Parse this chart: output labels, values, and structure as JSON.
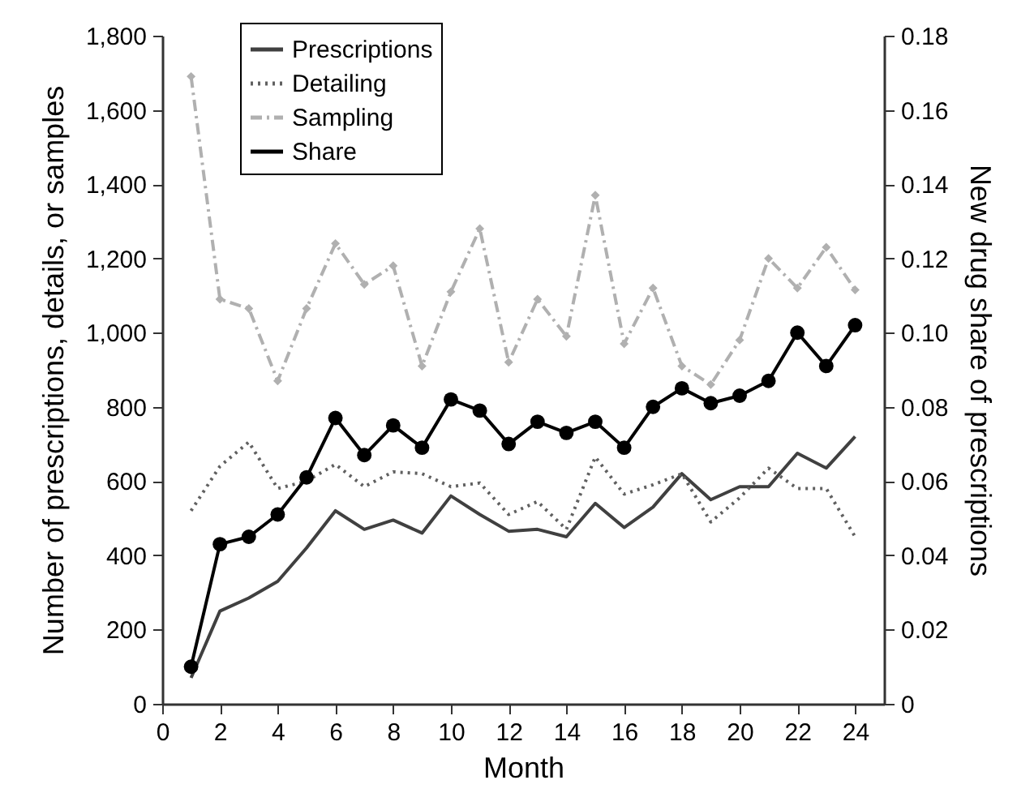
{
  "chart_data": {
    "type": "line",
    "xlabel": "Month",
    "ylabel": "Number of prescriptions, details, or samples",
    "y2label": "New drug share of prescriptions",
    "x": [
      1,
      2,
      3,
      4,
      5,
      6,
      7,
      8,
      9,
      10,
      11,
      12,
      13,
      14,
      15,
      16,
      17,
      18,
      19,
      20,
      21,
      22,
      23,
      24
    ],
    "xlim": [
      0,
      25
    ],
    "xticks": [
      0,
      2,
      4,
      6,
      8,
      10,
      12,
      14,
      16,
      18,
      20,
      22,
      24
    ],
    "ylim": [
      0,
      1800
    ],
    "yticks": [
      0,
      200,
      400,
      600,
      800,
      {
        "value": 1000,
        "label": "1,000"
      },
      {
        "value": 1200,
        "label": "1,200"
      },
      {
        "value": 1400,
        "label": "1,400"
      },
      {
        "value": 1600,
        "label": "1,600"
      },
      {
        "value": 1800,
        "label": "1,800"
      }
    ],
    "y2lim": [
      0,
      0.18
    ],
    "y2ticks": [
      0,
      0.02,
      0.04,
      0.06,
      0.08,
      {
        "value": 0.1,
        "label": "0.10"
      },
      0.12,
      0.14,
      0.16,
      0.18
    ],
    "grid": false,
    "legend": "top left",
    "series": [
      {
        "name": "Prescriptions",
        "color": "#404040",
        "line_style": "solid",
        "marker": "none",
        "values": [
          70,
          250,
          285,
          330,
          420,
          520,
          470,
          495,
          460,
          560,
          510,
          465,
          470,
          450,
          540,
          475,
          530,
          620,
          550,
          585,
          585,
          675,
          635,
          720
        ]
      },
      {
        "name": "Detailing",
        "color": "#606060",
        "line_style": "dotted",
        "marker": "none",
        "values": [
          520,
          640,
          705,
          580,
          600,
          645,
          585,
          625,
          620,
          585,
          595,
          510,
          545,
          470,
          665,
          565,
          590,
          620,
          490,
          555,
          635,
          580,
          580,
          450
        ]
      },
      {
        "name": "Sampling",
        "color": "#b0b0b0",
        "line_style": "dashed",
        "marker": "diamond",
        "values": [
          1690,
          1090,
          1065,
          870,
          1065,
          1240,
          1130,
          1180,
          910,
          1110,
          1280,
          920,
          1090,
          990,
          1370,
          970,
          1120,
          910,
          860,
          980,
          1200,
          1120,
          1230,
          1115
        ]
      },
      {
        "name": "Share",
        "color": "#000000",
        "line_style": "solid",
        "marker": "circle",
        "axis": "y2",
        "values": [
          0.01,
          0.043,
          0.045,
          0.051,
          0.061,
          0.077,
          0.067,
          0.075,
          0.069,
          0.082,
          0.079,
          0.07,
          0.076,
          0.073,
          0.076,
          0.069,
          0.08,
          0.085,
          0.081,
          0.083,
          0.087,
          0.1,
          0.091,
          0.102
        ]
      }
    ]
  }
}
